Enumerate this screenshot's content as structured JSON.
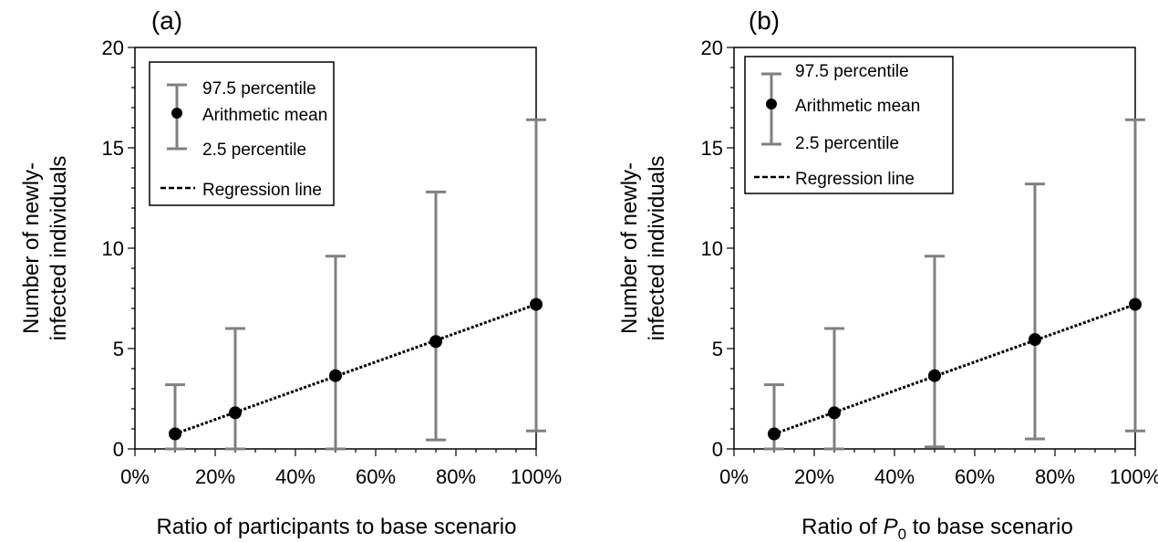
{
  "colors": {
    "errorbar": "#808080",
    "mean": "#000000",
    "regression": "#000000",
    "axis": "#000000"
  },
  "chart_data": [
    {
      "type": "scatter",
      "panel_label": "(a)",
      "xlabel": "Ratio of participants to base scenario",
      "ylabel": [
        "Number of newly-",
        "infected individuals"
      ],
      "xlim": [
        0,
        100
      ],
      "ylim": [
        0,
        20
      ],
      "xticks": [
        0,
        20,
        40,
        60,
        80,
        100
      ],
      "xtick_labels": [
        "0%",
        "20%",
        "40%",
        "60%",
        "80%",
        "100%"
      ],
      "yticks": [
        0,
        5,
        10,
        15,
        20
      ],
      "ytick_labels": [
        "0",
        "5",
        "10",
        "15",
        "20"
      ],
      "legend": {
        "placement": "top-left",
        "entries": [
          "97.5 percentile",
          "Arithmetic mean",
          "2.5 percentile",
          "Regression line"
        ]
      },
      "x": [
        10,
        25,
        50,
        75,
        100
      ],
      "mean": [
        0.75,
        1.8,
        3.65,
        5.35,
        7.2
      ],
      "p2_5": [
        0,
        0,
        0,
        0.45,
        0.9
      ],
      "p97_5": [
        3.2,
        6.0,
        9.6,
        12.8,
        16.4
      ],
      "regression": {
        "x": [
          10,
          100
        ],
        "y": [
          0.75,
          7.2
        ]
      }
    },
    {
      "type": "scatter",
      "panel_label": "(b)",
      "xlabel_parts": [
        "Ratio of ",
        "P",
        "0",
        " to base scenario"
      ],
      "ylabel": [
        "Number of newly-",
        "infected individuals"
      ],
      "xlim": [
        0,
        100
      ],
      "ylim": [
        0,
        20
      ],
      "xticks": [
        0,
        20,
        40,
        60,
        80,
        100
      ],
      "xtick_labels": [
        "0%",
        "20%",
        "40%",
        "60%",
        "80%",
        "100%"
      ],
      "yticks": [
        0,
        5,
        10,
        15,
        20
      ],
      "ytick_labels": [
        "0",
        "5",
        "10",
        "15",
        "20"
      ],
      "legend": {
        "placement": "top-left",
        "entries": [
          "97.5 percentile",
          "Arithmetic mean",
          "2.5 percentile",
          "Regression line"
        ]
      },
      "x": [
        10,
        25,
        50,
        75,
        100
      ],
      "mean": [
        0.75,
        1.8,
        3.65,
        5.45,
        7.2
      ],
      "p2_5": [
        0,
        0,
        0.1,
        0.5,
        0.9
      ],
      "p97_5": [
        3.2,
        6.0,
        9.6,
        13.2,
        16.4
      ],
      "regression": {
        "x": [
          10,
          100
        ],
        "y": [
          0.75,
          7.2
        ]
      }
    }
  ]
}
